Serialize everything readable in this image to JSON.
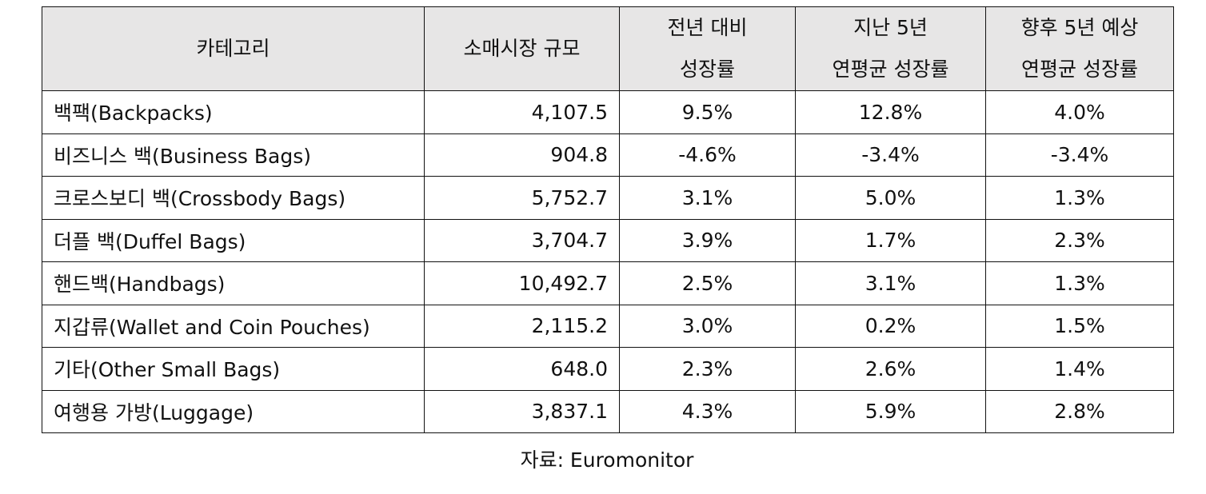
{
  "table": {
    "headers": [
      {
        "line1": "카테고리",
        "line2": ""
      },
      {
        "line1": "소매시장 규모",
        "line2": ""
      },
      {
        "line1": "전년 대비",
        "line2": "성장률"
      },
      {
        "line1": "지난 5년",
        "line2": "연평균 성장률"
      },
      {
        "line1": "향후 5년 예상",
        "line2": "연평균 성장률"
      }
    ],
    "rows": [
      {
        "category": "백팩(Backpacks)",
        "size": "4,107.5",
        "yoy": "9.5%",
        "past5": "12.8%",
        "next5": "4.0%"
      },
      {
        "category": "비즈니스 백(Business Bags)",
        "size": "904.8",
        "yoy": "-4.6%",
        "past5": "-3.4%",
        "next5": "-3.4%"
      },
      {
        "category": "크로스보디 백(Crossbody Bags)",
        "size": "5,752.7",
        "yoy": "3.1%",
        "past5": "5.0%",
        "next5": "1.3%"
      },
      {
        "category": "더플 백(Duffel Bags)",
        "size": "3,704.7",
        "yoy": "3.9%",
        "past5": "1.7%",
        "next5": "2.3%"
      },
      {
        "category": "핸드백(Handbags)",
        "size": "10,492.7",
        "yoy": "2.5%",
        "past5": "3.1%",
        "next5": "1.3%"
      },
      {
        "category": "지갑류(Wallet and Coin Pouches)",
        "size": "2,115.2",
        "yoy": "3.0%",
        "past5": "0.2%",
        "next5": "1.5%"
      },
      {
        "category": "기타(Other Small Bags)",
        "size": "648.0",
        "yoy": "2.3%",
        "past5": "2.6%",
        "next5": "1.4%"
      },
      {
        "category": "여행용 가방(Luggage)",
        "size": "3,837.1",
        "yoy": "4.3%",
        "past5": "5.9%",
        "next5": "2.8%"
      }
    ]
  },
  "source": "자료: Euromonitor",
  "colors": {
    "header_bg": "#e7e6e6",
    "border": "#111111",
    "text": "#111111"
  }
}
